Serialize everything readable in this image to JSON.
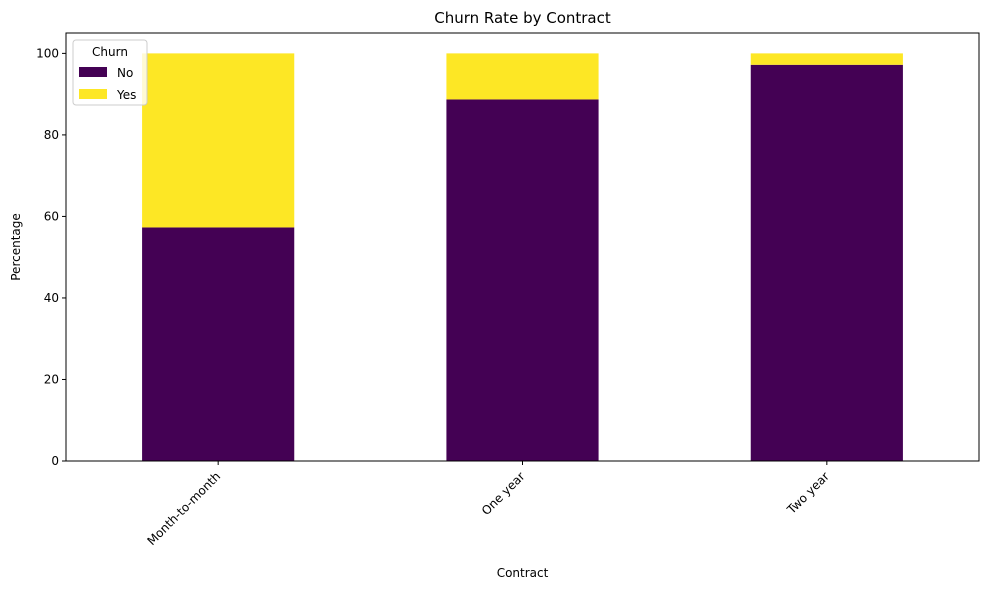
{
  "chart_data": {
    "type": "bar",
    "stacked": true,
    "title": "Churn Rate by Contract",
    "xlabel": "Contract",
    "ylabel": "Percentage",
    "categories": [
      "Month-to-month",
      "One year",
      "Two year"
    ],
    "series": [
      {
        "name": "No",
        "values": [
          57.3,
          88.7,
          97.2
        ],
        "color": "#440154"
      },
      {
        "name": "Yes",
        "values": [
          42.7,
          11.3,
          2.8
        ],
        "color": "#fde725"
      }
    ],
    "ylim": [
      0,
      105
    ],
    "yticks": [
      0,
      20,
      40,
      60,
      80,
      100
    ],
    "grid": false,
    "legend": {
      "title": "Churn",
      "placement": "top-left"
    }
  }
}
